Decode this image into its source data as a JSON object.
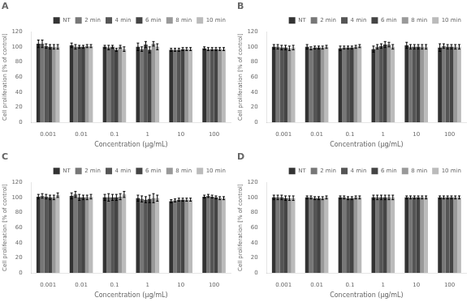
{
  "chart_data": [
    {
      "type": "bar",
      "title": "A",
      "categories": [
        "0.001",
        "0.01",
        "0.1",
        "1",
        "10",
        "100"
      ],
      "xlabel": "Concentration (μg/mL)",
      "ylabel": "Cell proliferation [% of control]",
      "ylim": [
        0,
        120
      ],
      "yticks": [
        0,
        20,
        40,
        60,
        80,
        100,
        120
      ],
      "grid": false,
      "legend": "upper right",
      "series": [
        {
          "name": "NT",
          "color": "#333333",
          "values": [
            104,
            102,
            100,
            100,
            96,
            98
          ],
          "errors": [
            5,
            3,
            2,
            5,
            2,
            2
          ]
        },
        {
          "name": "2 min",
          "color": "#777777",
          "values": [
            104,
            100,
            99,
            97,
            96,
            97
          ],
          "errors": [
            5,
            3,
            3,
            3,
            2,
            2
          ]
        },
        {
          "name": "4 min",
          "color": "#555555",
          "values": [
            101,
            100,
            100,
            103,
            96,
            97
          ],
          "errors": [
            3,
            2,
            2,
            4,
            2,
            2
          ]
        },
        {
          "name": "6 min",
          "color": "#444444",
          "values": [
            100,
            100,
            96,
            96,
            97,
            97
          ],
          "errors": [
            3,
            2,
            2,
            4,
            2,
            2
          ]
        },
        {
          "name": "8 min",
          "color": "#999999",
          "values": [
            100,
            101,
            100,
            104,
            97,
            97
          ],
          "errors": [
            3,
            2,
            2,
            3,
            2,
            2
          ]
        },
        {
          "name": "10 min",
          "color": "#bbbbbb",
          "values": [
            100,
            101,
            97,
            100,
            97,
            97
          ],
          "errors": [
            3,
            2,
            3,
            4,
            2,
            2
          ]
        }
      ]
    },
    {
      "type": "bar",
      "title": "B",
      "categories": [
        "0.001",
        "0.01",
        "0.1",
        "1",
        "10",
        "100"
      ],
      "xlabel": "Concentration (μg/mL)",
      "ylabel": "Cell proliferation [% of control]",
      "ylim": [
        0,
        120
      ],
      "yticks": [
        0,
        20,
        40,
        60,
        80,
        100,
        120
      ],
      "grid": false,
      "legend": "upper right",
      "series": [
        {
          "name": "NT",
          "color": "#333333",
          "values": [
            100,
            100,
            98,
            97,
            102,
            99
          ],
          "errors": [
            3,
            3,
            3,
            4,
            4,
            5
          ]
        },
        {
          "name": "2 min",
          "color": "#777777",
          "values": [
            100,
            98,
            99,
            100,
            100,
            101
          ],
          "errors": [
            3,
            2,
            2,
            3,
            3,
            3
          ]
        },
        {
          "name": "4 min",
          "color": "#555555",
          "values": [
            99,
            99,
            99,
            101,
            100,
            100
          ],
          "errors": [
            3,
            2,
            2,
            3,
            3,
            3
          ]
        },
        {
          "name": "6 min",
          "color": "#444444",
          "values": [
            99,
            99,
            99,
            103,
            100,
            100
          ],
          "errors": [
            3,
            2,
            2,
            4,
            3,
            3
          ]
        },
        {
          "name": "8 min",
          "color": "#999999",
          "values": [
            98,
            99,
            100,
            103,
            100,
            100
          ],
          "errors": [
            3,
            2,
            2,
            3,
            3,
            3
          ]
        },
        {
          "name": "10 min",
          "color": "#bbbbbb",
          "values": [
            99,
            100,
            101,
            100,
            100,
            100
          ],
          "errors": [
            3,
            2,
            2,
            3,
            3,
            3
          ]
        }
      ]
    },
    {
      "type": "bar",
      "title": "C",
      "categories": [
        "0.001",
        "0.01",
        "0.1",
        "1",
        "10",
        "100"
      ],
      "xlabel": "Concentration (μg/mL)",
      "ylabel": "Cell proliferation [% of control]",
      "ylim": [
        0,
        120
      ],
      "yticks": [
        0,
        20,
        40,
        60,
        80,
        100,
        120
      ],
      "grid": false,
      "legend": "upper right",
      "series": [
        {
          "name": "NT",
          "color": "#333333",
          "values": [
            101,
            102,
            100,
            99,
            95,
            101
          ],
          "errors": [
            3,
            4,
            4,
            4,
            2,
            2
          ]
        },
        {
          "name": "2 min",
          "color": "#777777",
          "values": [
            102,
            104,
            100,
            98,
            96,
            102
          ],
          "errors": [
            3,
            4,
            5,
            4,
            2,
            2
          ]
        },
        {
          "name": "4 min",
          "color": "#555555",
          "values": [
            101,
            100,
            100,
            97,
            97,
            101
          ],
          "errors": [
            3,
            4,
            4,
            4,
            2,
            2
          ]
        },
        {
          "name": "6 min",
          "color": "#444444",
          "values": [
            100,
            100,
            100,
            98,
            97,
            100
          ],
          "errors": [
            3,
            3,
            4,
            5,
            2,
            2
          ]
        },
        {
          "name": "8 min",
          "color": "#999999",
          "values": [
            100,
            100,
            101,
            99,
            97,
            99
          ],
          "errors": [
            3,
            3,
            4,
            6,
            2,
            2
          ]
        },
        {
          "name": "10 min",
          "color": "#bbbbbb",
          "values": [
            103,
            101,
            104,
            99,
            97,
            99
          ],
          "errors": [
            3,
            3,
            4,
            4,
            2,
            2
          ]
        }
      ]
    },
    {
      "type": "bar",
      "title": "D",
      "categories": [
        "0.001",
        "0.01",
        "0.1",
        "1",
        "10",
        "100"
      ],
      "xlabel": "Concentration (μg/mL)",
      "ylabel": "Cell proliferation [% of control]",
      "ylim": [
        0,
        120
      ],
      "yticks": [
        0,
        20,
        40,
        60,
        80,
        100,
        120
      ],
      "grid": false,
      "legend": "upper right",
      "series": [
        {
          "name": "NT",
          "color": "#333333",
          "values": [
            100,
            100,
            100,
            100,
            100,
            100
          ],
          "errors": [
            3,
            2,
            2,
            3,
            2,
            2
          ]
        },
        {
          "name": "2 min",
          "color": "#777777",
          "values": [
            100,
            100,
            100,
            100,
            100,
            100
          ],
          "errors": [
            3,
            2,
            2,
            3,
            2,
            2
          ]
        },
        {
          "name": "4 min",
          "color": "#555555",
          "values": [
            100,
            99,
            99,
            100,
            100,
            100
          ],
          "errors": [
            3,
            2,
            2,
            3,
            2,
            2
          ]
        },
        {
          "name": "6 min",
          "color": "#444444",
          "values": [
            99,
            99,
            99,
            100,
            100,
            100
          ],
          "errors": [
            3,
            2,
            2,
            3,
            2,
            2
          ]
        },
        {
          "name": "8 min",
          "color": "#999999",
          "values": [
            99,
            99,
            100,
            100,
            100,
            100
          ],
          "errors": [
            3,
            2,
            2,
            3,
            2,
            2
          ]
        },
        {
          "name": "10 min",
          "color": "#bbbbbb",
          "values": [
            99,
            100,
            100,
            100,
            100,
            100
          ],
          "errors": [
            3,
            2,
            2,
            3,
            2,
            2
          ]
        }
      ]
    }
  ]
}
